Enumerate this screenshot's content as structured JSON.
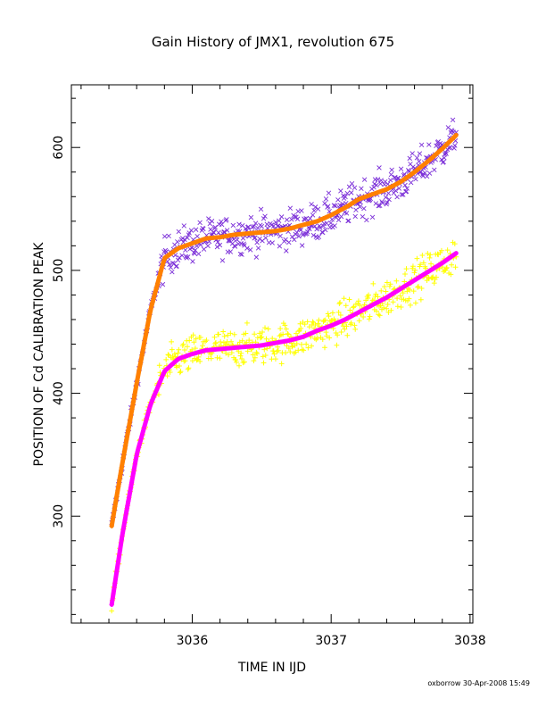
{
  "page": {
    "title": "Gain History of JMX1, revolution 675",
    "stamp": "oxborrow 30-Apr-2008 15:49"
  },
  "colors": {
    "upper_points": "#7b2fd8",
    "upper_fit": "#ff8000",
    "lower_points": "#ffff00",
    "lower_fit": "#ff00ff",
    "axes": "#000000"
  },
  "chart_data": {
    "type": "scatter",
    "title": "Gain History of JMX1, revolution 675",
    "xlabel": "TIME IN IJD",
    "ylabel": "POSITION OF Cd CALIBRATION PEAK",
    "xlim": [
      3035.13,
      3038.02
    ],
    "ylim": [
      213,
      651
    ],
    "xticks": [
      3036,
      3037,
      3038
    ],
    "yticks": [
      300,
      400,
      500,
      600
    ],
    "grid": false,
    "legend": "none",
    "series": [
      {
        "marker": "x",
        "color": "#7b2fd8",
        "role": "points",
        "x": [
          3035.42,
          3035.5,
          3035.6,
          3035.7,
          3035.8,
          3035.9,
          3036.0,
          3036.1,
          3036.2,
          3036.3,
          3036.4,
          3036.5,
          3036.6,
          3036.7,
          3036.8,
          3036.9,
          3037.0,
          3037.1,
          3037.2,
          3037.3,
          3037.4,
          3037.5,
          3037.6,
          3037.7,
          3037.8,
          3037.9
        ],
        "y": [
          292,
          345,
          408,
          468,
          510,
          518,
          522,
          526,
          527,
          529,
          530,
          531,
          532,
          534,
          537,
          540,
          545,
          551,
          558,
          562,
          566,
          572,
          580,
          589,
          599,
          610
        ]
      },
      {
        "marker": "line",
        "color": "#ff8000",
        "role": "fit",
        "x": [
          3035.42,
          3035.5,
          3035.6,
          3035.7,
          3035.8,
          3035.9,
          3036.0,
          3036.1,
          3036.2,
          3036.3,
          3036.4,
          3036.5,
          3036.6,
          3036.7,
          3036.8,
          3036.9,
          3037.0,
          3037.1,
          3037.2,
          3037.3,
          3037.4,
          3037.5,
          3037.6,
          3037.7,
          3037.8,
          3037.9
        ],
        "y": [
          292,
          345,
          408,
          468,
          510,
          518,
          522,
          526,
          527,
          529,
          530,
          531,
          532,
          534,
          537,
          540,
          545,
          551,
          558,
          562,
          566,
          572,
          580,
          589,
          599,
          610
        ]
      },
      {
        "marker": "+",
        "color": "#ffff00",
        "role": "points",
        "x": [
          3035.42,
          3035.5,
          3035.6,
          3035.7,
          3035.8,
          3035.9,
          3036.0,
          3036.1,
          3036.2,
          3036.3,
          3036.4,
          3036.5,
          3036.6,
          3036.7,
          3036.8,
          3036.9,
          3037.0,
          3037.1,
          3037.2,
          3037.3,
          3037.4,
          3037.5,
          3037.6,
          3037.7,
          3037.8,
          3037.9
        ],
        "y": [
          228,
          287,
          350,
          391,
          418,
          428,
          432,
          435,
          436,
          437,
          438,
          439,
          441,
          443,
          446,
          451,
          455,
          460,
          466,
          472,
          478,
          485,
          492,
          499,
          506,
          514
        ]
      },
      {
        "marker": "line",
        "color": "#ff00ff",
        "role": "fit",
        "x": [
          3035.42,
          3035.5,
          3035.6,
          3035.7,
          3035.8,
          3035.9,
          3036.0,
          3036.1,
          3036.2,
          3036.3,
          3036.4,
          3036.5,
          3036.6,
          3036.7,
          3036.8,
          3036.9,
          3037.0,
          3037.1,
          3037.2,
          3037.3,
          3037.4,
          3037.5,
          3037.6,
          3037.7,
          3037.8,
          3037.9
        ],
        "y": [
          228,
          287,
          350,
          391,
          418,
          428,
          432,
          435,
          436,
          437,
          438,
          439,
          441,
          443,
          446,
          451,
          455,
          460,
          466,
          472,
          478,
          485,
          492,
          499,
          506,
          514
        ]
      }
    ]
  }
}
